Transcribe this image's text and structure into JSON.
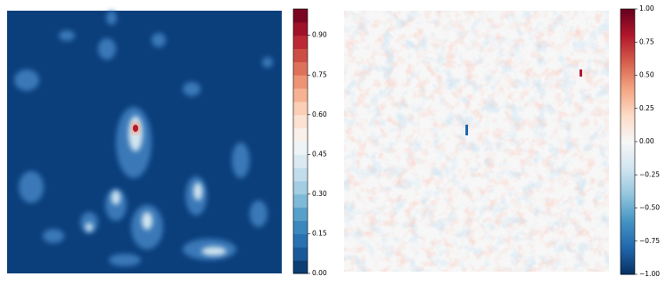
{
  "chart_data": [
    {
      "type": "heatmap",
      "colors": [
        "#053061",
        "#2166ac",
        "#4393c3",
        "#92c5de",
        "#d1e5f0",
        "#f7f7f7",
        "#fddbc7",
        "#f4a582",
        "#d6604d",
        "#b2182b",
        "#67001f"
      ],
      "clim": [
        0,
        1
      ],
      "cticks": [
        {
          "value": 0,
          "label": "0.00"
        },
        {
          "value": 0.15,
          "label": "0.15"
        },
        {
          "value": 0.3,
          "label": "0.30"
        },
        {
          "value": 0.45,
          "label": "0.45"
        },
        {
          "value": 0.6,
          "label": "0.60"
        },
        {
          "value": 0.75,
          "label": "0.75"
        },
        {
          "value": 0.9,
          "label": "0.90"
        }
      ]
    },
    {
      "type": "heatmap",
      "colors": [
        "#053061",
        "#2166ac",
        "#4393c3",
        "#92c5de",
        "#d1e5f0",
        "#f7f7f7",
        "#fddbc7",
        "#f4a582",
        "#d6604d",
        "#b2182b",
        "#67001f"
      ],
      "clim": [
        -1,
        1
      ],
      "cticks": [
        {
          "value": -1,
          "label": "−1.00"
        },
        {
          "value": -0.75,
          "label": "−0.75"
        },
        {
          "value": -0.5,
          "label": "−0.50"
        },
        {
          "value": -0.25,
          "label": "−0.25"
        },
        {
          "value": 0,
          "label": "0.00"
        },
        {
          "value": 0.25,
          "label": "0.25"
        },
        {
          "value": 0.5,
          "label": "0.50"
        },
        {
          "value": 0.75,
          "label": "0.75"
        },
        {
          "value": 1,
          "label": "1.00"
        }
      ]
    }
  ]
}
